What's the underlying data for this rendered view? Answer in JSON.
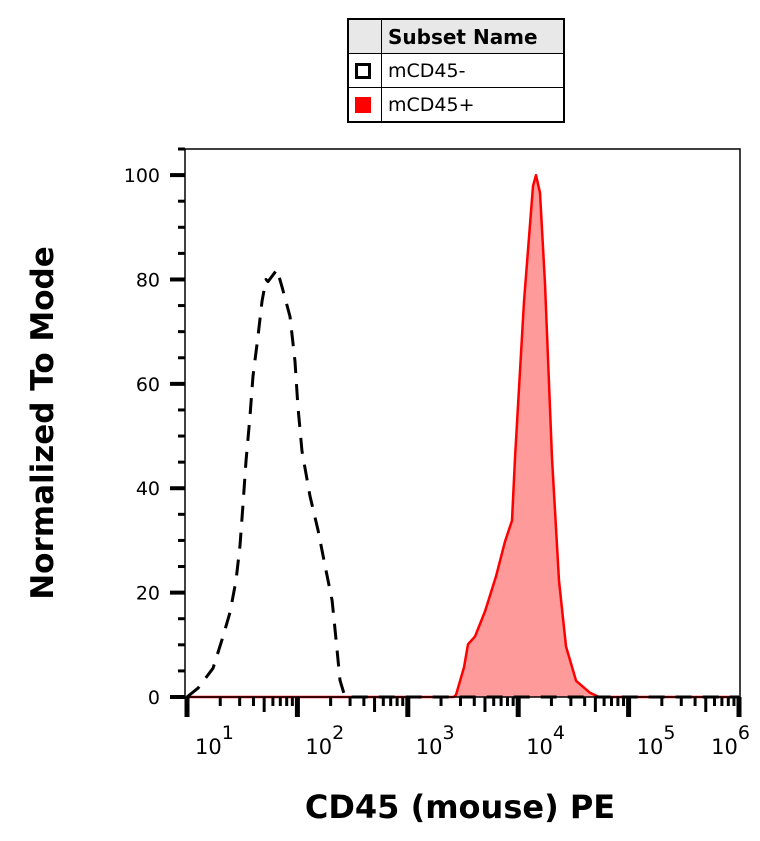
{
  "legend": {
    "header": "Subset Name",
    "items": [
      {
        "label": "mCD45-",
        "swatch_style": "open-square",
        "color": "#000000"
      },
      {
        "label": "mCD45+",
        "swatch_style": "filled-square",
        "color": "#ff0000"
      }
    ]
  },
  "chart_data": {
    "type": "area",
    "title": "",
    "xlabel": "CD45 (mouse) PE",
    "ylabel": "Normalized To Mode",
    "x_scale": "log",
    "xlim": [
      10,
      1000000
    ],
    "ylim": [
      0,
      105
    ],
    "x_ticks": [
      {
        "base": "10",
        "exp": "1",
        "value": 10
      },
      {
        "base": "10",
        "exp": "2",
        "value": 100
      },
      {
        "base": "10",
        "exp": "3",
        "value": 1000
      },
      {
        "base": "10",
        "exp": "4",
        "value": 10000
      },
      {
        "base": "10",
        "exp": "5",
        "value": 100000
      },
      {
        "base": "10",
        "exp": "6",
        "value": 1000000
      }
    ],
    "y_ticks": [
      "0",
      "20",
      "40",
      "60",
      "80",
      "100"
    ],
    "grid": false,
    "legend_position": "top-center",
    "series": [
      {
        "name": "mCD45-",
        "color": "#000000",
        "line_style": "dashed",
        "fill": "none",
        "points": [
          [
            10,
            0
          ],
          [
            12.6,
            1.7
          ],
          [
            17.2,
            5.5
          ],
          [
            20.7,
            10.9
          ],
          [
            24.5,
            16.2
          ],
          [
            27.8,
            22.3
          ],
          [
            30.2,
            29.0
          ],
          [
            32.1,
            36.6
          ],
          [
            34.2,
            45.2
          ],
          [
            37.2,
            53.8
          ],
          [
            39.6,
            61.5
          ],
          [
            44.0,
            69.1
          ],
          [
            47.8,
            75.8
          ],
          [
            52.0,
            80.0
          ],
          [
            54.2,
            79.6
          ],
          [
            65.3,
            81.9
          ],
          [
            72.6,
            78.6
          ],
          [
            85.7,
            72.9
          ],
          [
            95.1,
            64.3
          ],
          [
            101,
            55.7
          ],
          [
            110,
            47.1
          ],
          [
            130,
            38.5
          ],
          [
            154,
            31.9
          ],
          [
            178,
            25.2
          ],
          [
            206,
            18.5
          ],
          [
            224,
            10.9
          ],
          [
            243,
            3.2
          ],
          [
            270,
            0
          ],
          [
            1000000,
            0
          ]
        ]
      },
      {
        "name": "mCD45+",
        "color": "#ff0000",
        "line_style": "solid",
        "fill": "#ff9a9a",
        "points": [
          [
            10,
            0
          ],
          [
            2600,
            0
          ],
          [
            2735,
            0.4
          ],
          [
            3228,
            5.7
          ],
          [
            3511,
            10.1
          ],
          [
            4063,
            11.6
          ],
          [
            5003,
            16.4
          ],
          [
            6295,
            23.1
          ],
          [
            7588,
            29.8
          ],
          [
            8790,
            33.8
          ],
          [
            9352,
            45.8
          ],
          [
            11290,
            75.8
          ],
          [
            13620,
            97.9
          ],
          [
            14500,
            100
          ],
          [
            15750,
            96.6
          ],
          [
            17490,
            79.2
          ],
          [
            20230,
            45.8
          ],
          [
            23440,
            22.3
          ],
          [
            27100,
            9.7
          ],
          [
            33420,
            3.1
          ],
          [
            44670,
            0.8
          ],
          [
            53950,
            0
          ],
          [
            1000000,
            0
          ]
        ]
      }
    ]
  }
}
